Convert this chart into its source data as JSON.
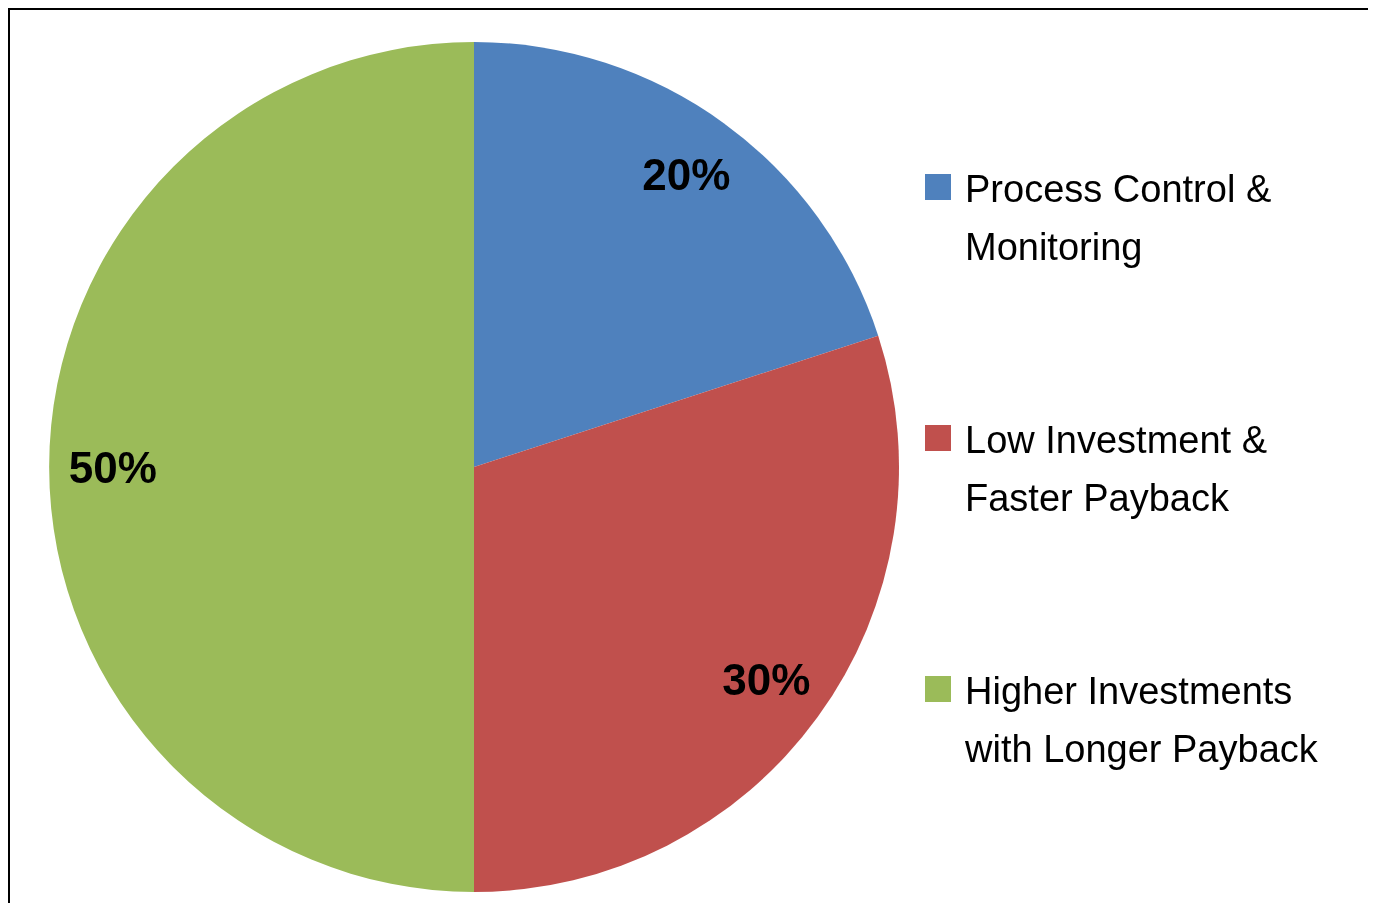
{
  "chart_data": {
    "type": "pie",
    "categories": [
      "Process Control & Monitoring",
      "Low Investment & Faster Payback",
      "Higher Investments with Longer Payback"
    ],
    "values": [
      20,
      30,
      50
    ],
    "colors": [
      "#4f81bd",
      "#c0504d",
      "#9bbb59"
    ],
    "value_labels": [
      "20%",
      "30%",
      "50%"
    ],
    "legend": "right"
  }
}
